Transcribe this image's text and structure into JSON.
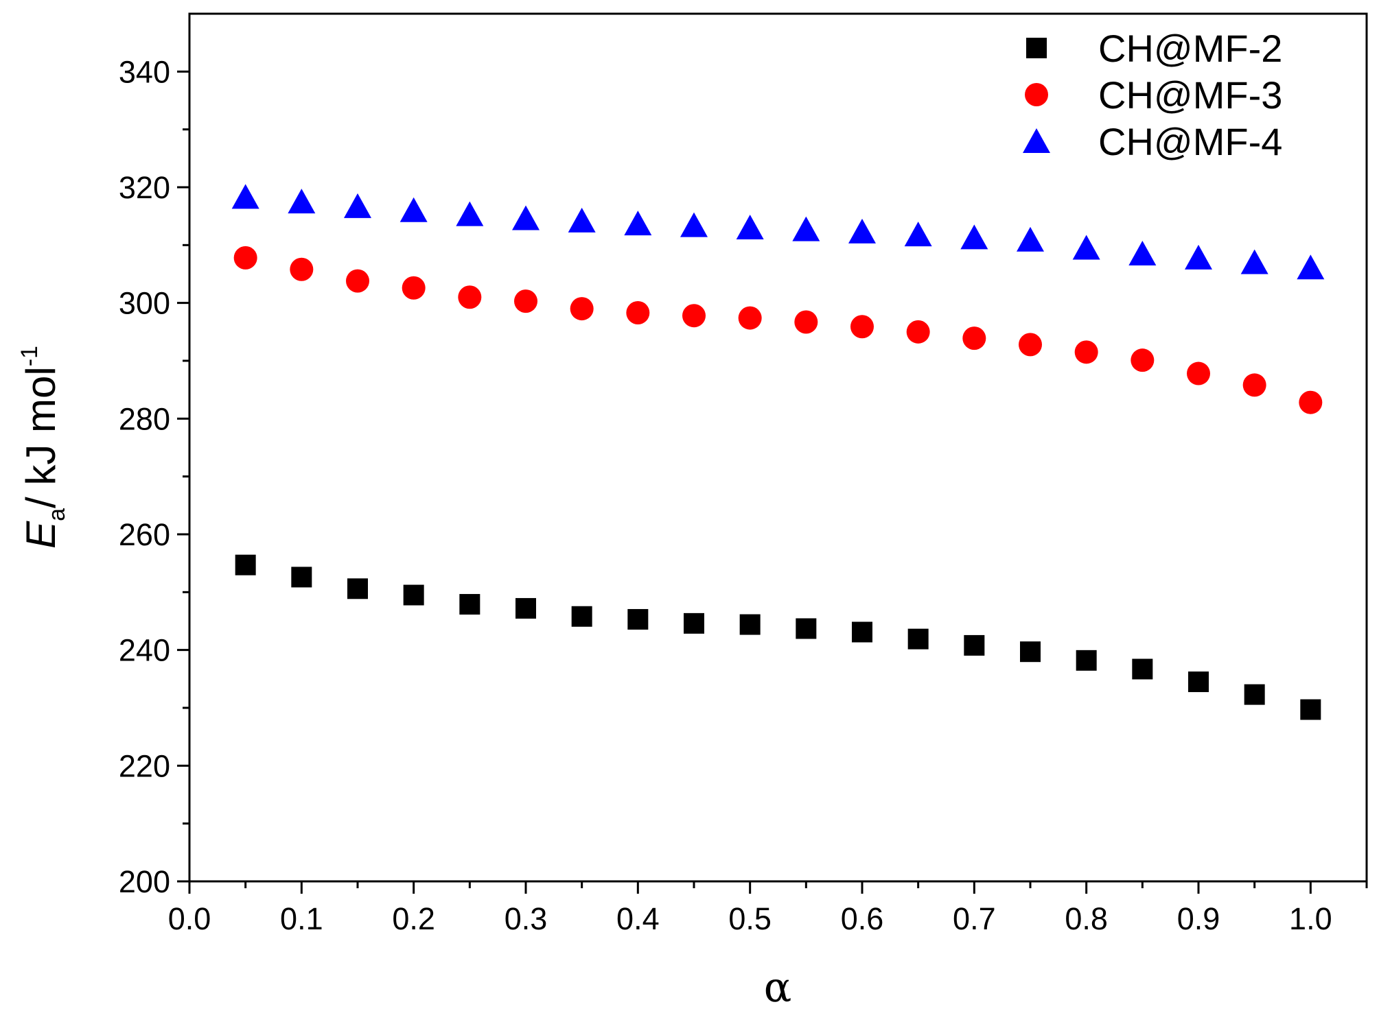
{
  "chart_data": {
    "type": "scatter",
    "title": "",
    "xlabel": "α",
    "ylabel": {
      "main": "E",
      "subscript": "a",
      "unit": "/ kJ mol",
      "superscript": "-1"
    },
    "xlim": [
      0.0,
      1.05
    ],
    "ylim": [
      200,
      350
    ],
    "x_ticks": [
      0.0,
      0.1,
      0.2,
      0.3,
      0.4,
      0.5,
      0.6,
      0.7,
      0.8,
      0.9,
      1.0
    ],
    "x_tick_labels": [
      "0.0",
      "0.1",
      "0.2",
      "0.3",
      "0.4",
      "0.5",
      "0.6",
      "0.7",
      "0.8",
      "0.9",
      "1.0"
    ],
    "y_ticks": [
      200,
      220,
      240,
      260,
      280,
      300,
      320,
      340
    ],
    "y_tick_labels": [
      "200",
      "220",
      "240",
      "260",
      "280",
      "300",
      "320",
      "340"
    ],
    "legend_position": "top-right",
    "x": [
      0.05,
      0.1,
      0.15,
      0.2,
      0.25,
      0.3,
      0.35,
      0.4,
      0.45,
      0.5,
      0.55,
      0.6,
      0.65,
      0.7,
      0.75,
      0.8,
      0.85,
      0.9,
      0.95,
      1.0
    ],
    "series": [
      {
        "name": "CH@MF-2",
        "marker": "square",
        "color": "#000000",
        "values": [
          254.7,
          252.6,
          250.6,
          249.5,
          247.9,
          247.2,
          245.8,
          245.3,
          244.6,
          244.4,
          243.7,
          243.1,
          241.9,
          240.8,
          239.7,
          238.2,
          236.7,
          234.5,
          232.3,
          229.7
        ]
      },
      {
        "name": "CH@MF-3",
        "marker": "circle",
        "color": "#ff0000",
        "values": [
          307.8,
          305.8,
          303.8,
          302.6,
          301.0,
          300.3,
          299.0,
          298.3,
          297.8,
          297.4,
          296.7,
          295.9,
          295.0,
          293.9,
          292.8,
          291.5,
          290.1,
          287.8,
          285.8,
          282.8
        ]
      },
      {
        "name": "CH@MF-4",
        "marker": "triangle",
        "color": "#0000ff",
        "values": [
          318.3,
          317.5,
          316.7,
          316.0,
          315.3,
          314.6,
          314.2,
          313.7,
          313.4,
          313.0,
          312.7,
          312.3,
          311.8,
          311.3,
          310.9,
          309.5,
          308.5,
          307.8,
          307.0,
          306.1
        ]
      }
    ]
  }
}
